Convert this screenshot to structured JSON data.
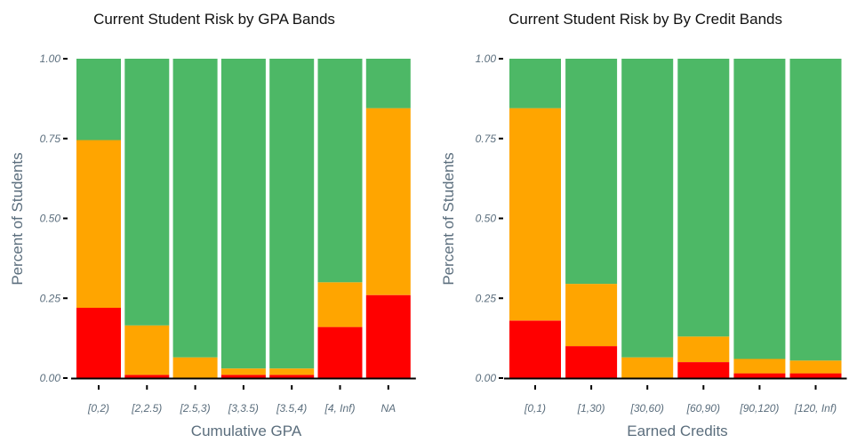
{
  "colors": {
    "high": "#ff0000",
    "medium": "#ffa500",
    "low": "#4db866",
    "axis": "#000000",
    "text": "#5b6e7d"
  },
  "chart_data": [
    {
      "type": "bar",
      "stacked": true,
      "title": "Current Student Risk by GPA Bands",
      "xlabel": "Cumulative GPA",
      "ylabel": "Percent of Students",
      "ylim": [
        0,
        1
      ],
      "yticks": [
        "0.00",
        "0.25",
        "0.50",
        "0.75",
        "1.00"
      ],
      "categories": [
        "[0,2)",
        "[2,2.5)",
        "[2.5,3)",
        "[3,3.5)",
        "[3.5,4)",
        "[4, Inf)",
        "NA"
      ],
      "series": [
        {
          "values": [
            0.22,
            0.01,
            0.0,
            0.01,
            0.01,
            0.16,
            0.26
          ]
        },
        {
          "values": [
            0.525,
            0.155,
            0.065,
            0.02,
            0.02,
            0.14,
            0.585
          ]
        },
        {
          "values": [
            0.255,
            0.835,
            0.935,
            0.97,
            0.97,
            0.7,
            0.155
          ]
        }
      ]
    },
    {
      "type": "bar",
      "stacked": true,
      "title": "Current Student Risk by By Credit Bands",
      "xlabel": "Earned Credits",
      "ylabel": "Percent of Students",
      "ylim": [
        0,
        1
      ],
      "yticks": [
        "0.00",
        "0.25",
        "0.50",
        "0.75",
        "1.00"
      ],
      "categories": [
        "[0,1)",
        "[1,30)",
        "[30,60)",
        "[60,90)",
        "[90,120)",
        "[120, Inf)"
      ],
      "series": [
        {
          "values": [
            0.18,
            0.1,
            0.0,
            0.05,
            0.015,
            0.015
          ]
        },
        {
          "values": [
            0.665,
            0.195,
            0.065,
            0.08,
            0.045,
            0.04
          ]
        },
        {
          "values": [
            0.155,
            0.705,
            0.935,
            0.87,
            0.94,
            0.945
          ]
        }
      ]
    }
  ]
}
